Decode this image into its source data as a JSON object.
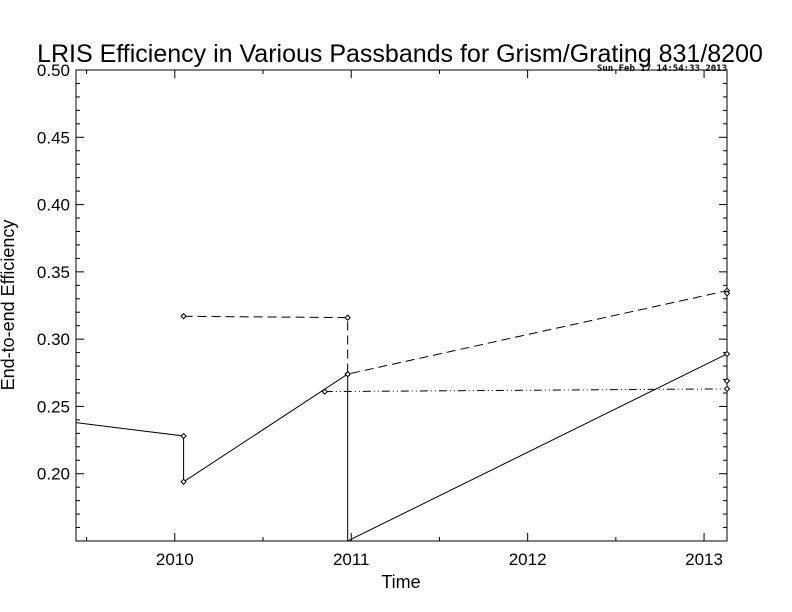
{
  "chart_data": {
    "type": "line",
    "title": "LRIS Efficiency in Various Passbands for Grism/Grating 831/8200",
    "timestamp": "Sun Feb 17 14:54:33 2013",
    "xlabel": "Time",
    "ylabel": "End-to-end Efficiency",
    "xlim": [
      2009.44,
      2013.13
    ],
    "ylim": [
      0.15,
      0.5
    ],
    "xticks": [
      {
        "value": 2010,
        "label": "2010"
      },
      {
        "value": 2011,
        "label": "2011"
      },
      {
        "value": 2012,
        "label": "2012"
      },
      {
        "value": 2013,
        "label": "2013"
      }
    ],
    "yticks": [
      {
        "value": 0.2,
        "label": "0.20"
      },
      {
        "value": 0.25,
        "label": "0.25"
      },
      {
        "value": 0.3,
        "label": "0.30"
      },
      {
        "value": 0.35,
        "label": "0.35"
      },
      {
        "value": 0.4,
        "label": "0.40"
      },
      {
        "value": 0.45,
        "label": "0.45"
      },
      {
        "value": 0.5,
        "label": "0.50"
      }
    ],
    "grid": false,
    "legend": false,
    "series": [
      {
        "style": "solid",
        "x": [
          2009.44,
          2010.05,
          2010.05,
          2010.98,
          2010.98,
          2013.13
        ],
        "y": [
          0.238,
          0.228,
          0.194,
          0.274,
          0.15,
          0.289
        ],
        "markers": [
          false,
          true,
          true,
          true,
          false,
          true
        ]
      },
      {
        "style": "dashed",
        "x": [
          2010.05,
          2010.98,
          2010.98,
          2013.13,
          2013.13
        ],
        "y": [
          0.317,
          0.316,
          0.274,
          0.336,
          0.334
        ],
        "markers": [
          true,
          true,
          true,
          true,
          true
        ]
      },
      {
        "style": "dash-dot-dot",
        "x": [
          2010.85,
          2013.13,
          2013.13
        ],
        "y": [
          0.261,
          0.263,
          0.269
        ],
        "markers": [
          true,
          true,
          true
        ]
      }
    ]
  }
}
